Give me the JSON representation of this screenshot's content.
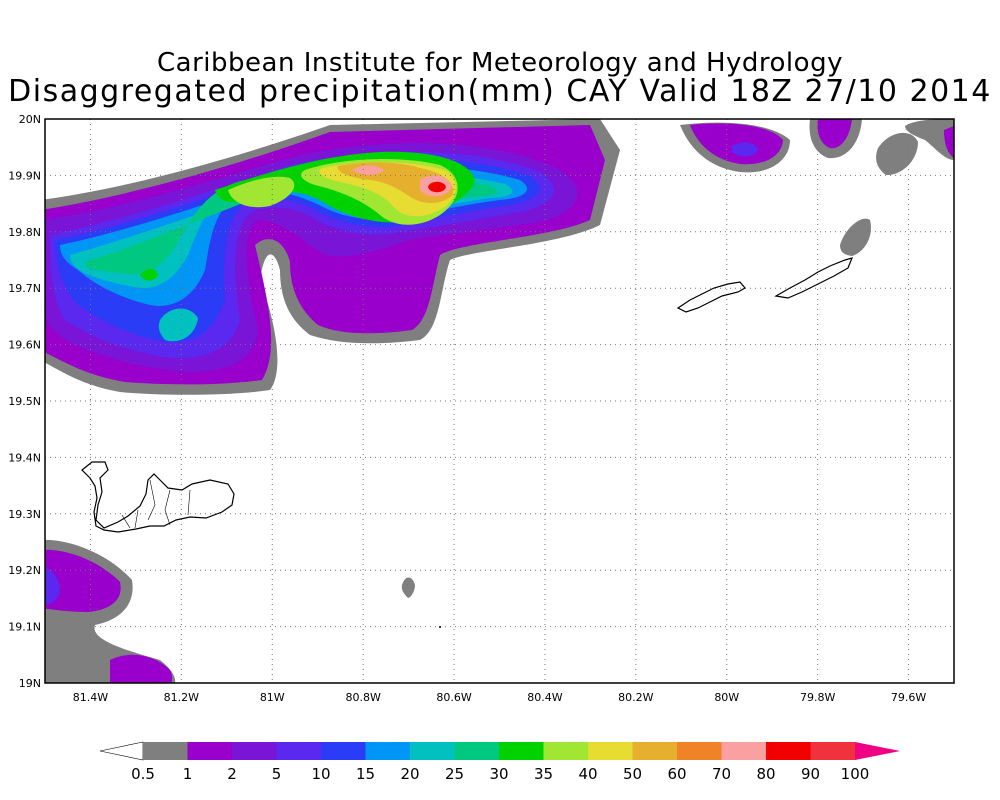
{
  "titles": {
    "line1": "Caribbean Institute for Meteorology and Hydrology",
    "line2": "Disaggregated precipitation(mm) CAY Valid 18Z 27/10 2014"
  },
  "map": {
    "lon_range": [
      -81.5,
      -79.5
    ],
    "lat_range": [
      19.0,
      20.0
    ],
    "grid": "dotted",
    "lat_ticks": [
      {
        "value": 19.0,
        "label": "19N"
      },
      {
        "value": 19.1,
        "label": "19.1N"
      },
      {
        "value": 19.2,
        "label": "19.2N"
      },
      {
        "value": 19.3,
        "label": "19.3N"
      },
      {
        "value": 19.4,
        "label": "19.4N"
      },
      {
        "value": 19.5,
        "label": "19.5N"
      },
      {
        "value": 19.6,
        "label": "19.6N"
      },
      {
        "value": 19.7,
        "label": "19.7N"
      },
      {
        "value": 19.8,
        "label": "19.8N"
      },
      {
        "value": 19.9,
        "label": "19.9N"
      },
      {
        "value": 20.0,
        "label": "20N"
      }
    ],
    "lon_ticks": [
      {
        "value": -81.4,
        "label": "81.4W"
      },
      {
        "value": -81.2,
        "label": "81.2W"
      },
      {
        "value": -81.0,
        "label": "81W"
      },
      {
        "value": -80.8,
        "label": "80.8W"
      },
      {
        "value": -80.6,
        "label": "80.6W"
      },
      {
        "value": -80.4,
        "label": "80.4W"
      },
      {
        "value": -80.2,
        "label": "80.2W"
      },
      {
        "value": -80.0,
        "label": "80W"
      },
      {
        "value": -79.8,
        "label": "79.8W"
      },
      {
        "value": -79.6,
        "label": "79.6W"
      }
    ]
  },
  "colorbar": {
    "labels": [
      "0.5",
      "1",
      "2",
      "5",
      "10",
      "15",
      "20",
      "25",
      "30",
      "35",
      "40",
      "50",
      "60",
      "70",
      "80",
      "90",
      "100"
    ],
    "colors": [
      "#ffffff",
      "#7f7f7f",
      "#9900cc",
      "#7a14d6",
      "#5a28ef",
      "#2a3cf5",
      "#0096f5",
      "#00c0c0",
      "#00c880",
      "#00d200",
      "#a0e632",
      "#e6dc32",
      "#e6af2d",
      "#f08228",
      "#faa0a0",
      "#f00000",
      "#f0323c",
      "#f00082"
    ],
    "units": "mm"
  },
  "colors": {
    "gray": "#7f7f7f",
    "violet": "#9900cc",
    "purple": "#7a14d6",
    "indigo": "#5a28ef",
    "blue": "#2a3cf5",
    "sky": "#0096f5",
    "cyan": "#00c0c0",
    "teal": "#00c880",
    "green": "#00d200",
    "lime": "#a0e632",
    "yellow": "#e6dc32",
    "orange": "#e6af2d",
    "pink": "#faa0a0",
    "red": "#f00000"
  }
}
